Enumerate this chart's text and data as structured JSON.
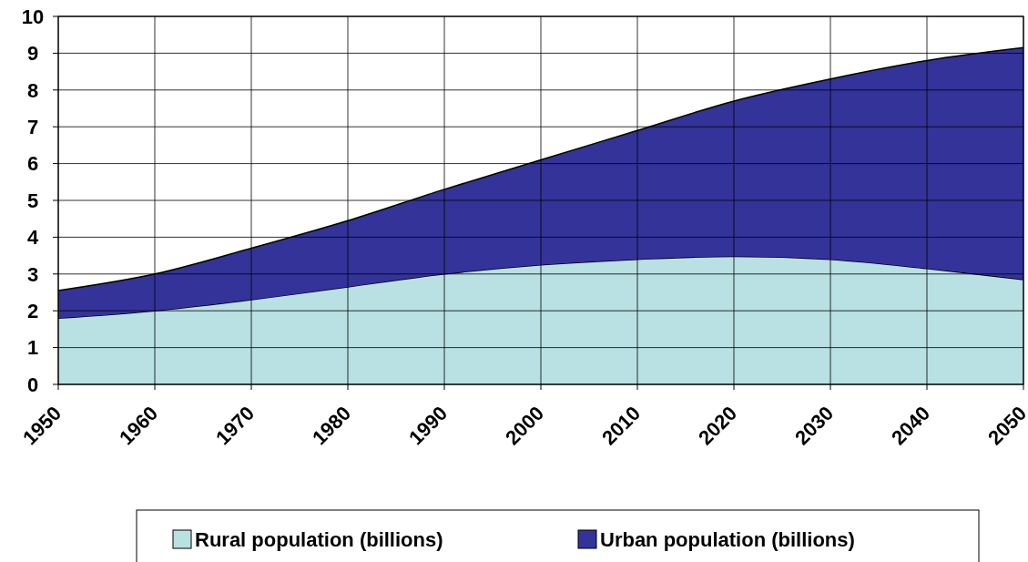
{
  "chart_data": {
    "type": "area",
    "stacked": true,
    "x": [
      1950,
      1960,
      1970,
      1980,
      1990,
      2000,
      2010,
      2020,
      2030,
      2040,
      2050
    ],
    "xlim": [
      1950,
      2050
    ],
    "xticks": [
      1950,
      1960,
      1970,
      1980,
      1990,
      2000,
      2010,
      2020,
      2030,
      2040,
      2050
    ],
    "ylim": [
      0,
      10
    ],
    "yticks": [
      0,
      1,
      2,
      3,
      4,
      5,
      6,
      7,
      8,
      9,
      10
    ],
    "grid": true,
    "legend": "bottom",
    "series": [
      {
        "name": "Rural population (billions)",
        "color": "#b9e0e3",
        "values": [
          1.8,
          2.0,
          2.3,
          2.65,
          3.0,
          3.25,
          3.4,
          3.48,
          3.4,
          3.15,
          2.85
        ]
      },
      {
        "name": "Urban population (billions)",
        "color": "#333399",
        "values": [
          0.75,
          1.0,
          1.4,
          1.8,
          2.3,
          2.85,
          3.5,
          4.22,
          4.9,
          5.65,
          6.3
        ]
      }
    ]
  }
}
